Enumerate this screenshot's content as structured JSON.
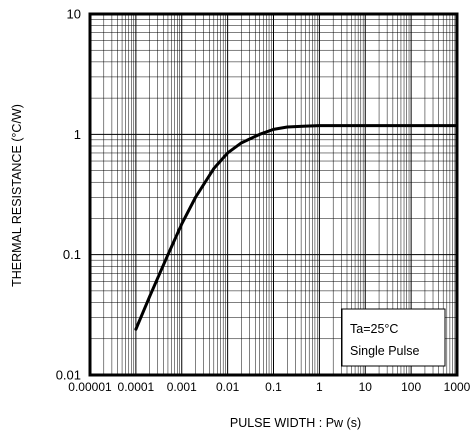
{
  "chart_data": {
    "type": "line",
    "title": "",
    "xlabel": "PULSE WIDTH : Pw (s)",
    "ylabel": "THERMAL RESISTANCE (°C/W)",
    "x_scale": "log",
    "y_scale": "log",
    "xlim": [
      1e-05,
      1000
    ],
    "ylim": [
      0.01,
      10
    ],
    "grid": true,
    "x_ticks": [
      {
        "value": 1e-05,
        "label": "0.00001"
      },
      {
        "value": 0.0001,
        "label": "0.0001"
      },
      {
        "value": 0.001,
        "label": "0.001"
      },
      {
        "value": 0.01,
        "label": "0.01"
      },
      {
        "value": 0.1,
        "label": "0.1"
      },
      {
        "value": 1,
        "label": "1"
      },
      {
        "value": 10,
        "label": "10"
      },
      {
        "value": 100,
        "label": "100"
      },
      {
        "value": 1000,
        "label": "1000"
      }
    ],
    "y_ticks": [
      {
        "value": 0.01,
        "label": "0.01"
      },
      {
        "value": 0.1,
        "label": "0.1"
      },
      {
        "value": 1,
        "label": "1"
      },
      {
        "value": 10,
        "label": "10"
      }
    ],
    "annotation": {
      "lines": [
        "Ta=25°C",
        "Single Pulse"
      ],
      "position": "bottom-right"
    },
    "series": [
      {
        "x": [
          0.0001,
          0.0002,
          0.0005,
          0.001,
          0.002,
          0.005,
          0.01,
          0.02,
          0.05,
          0.1,
          0.2,
          0.5,
          1,
          10,
          100,
          1000
        ],
        "y": [
          0.024,
          0.045,
          0.1,
          0.18,
          0.3,
          0.52,
          0.7,
          0.85,
          1.0,
          1.1,
          1.15,
          1.17,
          1.18,
          1.18,
          1.18,
          1.18
        ]
      }
    ],
    "colors": {
      "line": "#000000",
      "grid_major": "#000000",
      "grid_minor": "#000000"
    }
  }
}
